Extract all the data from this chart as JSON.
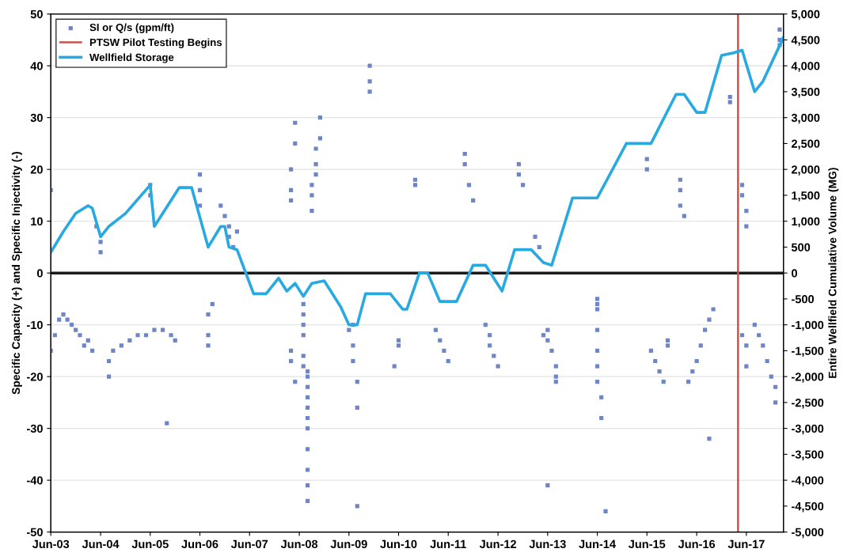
{
  "chart_data": {
    "type": "scatter",
    "ylabel": "Specific Capacity (+) and Specific Injectivity (-)",
    "y2label": "Entire Wellfield Cumulative Volume (MG)",
    "xlim": [
      "2003-06",
      "2018-03"
    ],
    "xticks": [
      {
        "value": "2003-06",
        "label": "Jun-03"
      },
      {
        "value": "2004-06",
        "label": "Jun-04"
      },
      {
        "value": "2005-06",
        "label": "Jun-05"
      },
      {
        "value": "2006-06",
        "label": "Jun-06"
      },
      {
        "value": "2007-06",
        "label": "Jun-07"
      },
      {
        "value": "2008-06",
        "label": "Jun-08"
      },
      {
        "value": "2009-06",
        "label": "Jun-09"
      },
      {
        "value": "2010-06",
        "label": "Jun-10"
      },
      {
        "value": "2011-06",
        "label": "Jun-11"
      },
      {
        "value": "2012-06",
        "label": "Jun-12"
      },
      {
        "value": "2013-06",
        "label": "Jun-13"
      },
      {
        "value": "2014-06",
        "label": "Jun-14"
      },
      {
        "value": "2015-06",
        "label": "Jun-15"
      },
      {
        "value": "2016-06",
        "label": "Jun-16"
      },
      {
        "value": "2017-06",
        "label": "Jun-17"
      }
    ],
    "ylim": [
      -50,
      50
    ],
    "yticks": [
      -50,
      -40,
      -30,
      -20,
      -10,
      0,
      10,
      20,
      30,
      40,
      50
    ],
    "y2lim": [
      -5000,
      5000
    ],
    "y2ticks": [
      {
        "value": -5000,
        "label": "-5,000"
      },
      {
        "value": -4500,
        "label": "-4,500"
      },
      {
        "value": -4000,
        "label": "-4,000"
      },
      {
        "value": -3500,
        "label": "-3,500"
      },
      {
        "value": -3000,
        "label": "-3,000"
      },
      {
        "value": -2500,
        "label": "-2,500"
      },
      {
        "value": -2000,
        "label": "-2,000"
      },
      {
        "value": -1500,
        "label": "-1,500"
      },
      {
        "value": -1000,
        "label": "-1,000"
      },
      {
        "value": -500,
        "label": "-500"
      },
      0,
      500,
      {
        "value": 1000,
        "label": "1,000"
      },
      {
        "value": 1500,
        "label": "1,500"
      },
      {
        "value": 2000,
        "label": "2,000"
      },
      {
        "value": 2500,
        "label": "2,500"
      },
      {
        "value": 3000,
        "label": "3,000"
      },
      {
        "value": 3500,
        "label": "3,500"
      },
      {
        "value": 4000,
        "label": "4,000"
      },
      {
        "value": 4500,
        "label": "4,500"
      },
      {
        "value": 5000,
        "label": "5,000"
      }
    ],
    "grid": "y",
    "legend": "top left",
    "series": [
      {
        "name": "SI or Q/s (gpm/ft)",
        "color": "#6f86c6",
        "marker": "square",
        "x": [
          "2003-06",
          "2003-06",
          "2003-07",
          "2003-08",
          "2003-09",
          "2003-10",
          "2003-11",
          "2003-12",
          "2004-01",
          "2004-02",
          "2004-03",
          "2004-04",
          "2004-05",
          "2004-06",
          "2004-06",
          "2004-08",
          "2004-08",
          "2004-09",
          "2004-11",
          "2005-01",
          "2005-03",
          "2005-05",
          "2005-06",
          "2005-06",
          "2005-07",
          "2005-09",
          "2005-10",
          "2005-11",
          "2005-12",
          "2006-06",
          "2006-06",
          "2006-06",
          "2006-08",
          "2006-08",
          "2006-08",
          "2006-09",
          "2006-11",
          "2006-12",
          "2007-01",
          "2007-01",
          "2007-02",
          "2007-03",
          "2008-04",
          "2008-04",
          "2008-05",
          "2008-05",
          "2008-05",
          "2008-04",
          "2008-04",
          "2008-04",
          "2008-07",
          "2008-07",
          "2008-07",
          "2008-07",
          "2008-07",
          "2008-07",
          "2008-08",
          "2008-08",
          "2008-08",
          "2008-08",
          "2008-08",
          "2008-08",
          "2008-08",
          "2008-08",
          "2008-08",
          "2008-08",
          "2008-08",
          "2008-09",
          "2008-09",
          "2008-09",
          "2008-10",
          "2008-10",
          "2008-10",
          "2008-11",
          "2008-11",
          "2009-06",
          "2009-07",
          "2009-07",
          "2009-08",
          "2009-08",
          "2009-08",
          "2009-07",
          "2009-11",
          "2009-11",
          "2009-11",
          "2010-06",
          "2010-06",
          "2010-05",
          "2010-10",
          "2010-10",
          "2011-03",
          "2011-04",
          "2011-05",
          "2011-06",
          "2011-10",
          "2011-10",
          "2011-11",
          "2011-12",
          "2012-03",
          "2012-04",
          "2012-04",
          "2012-05",
          "2012-06",
          "2012-11",
          "2012-11",
          "2012-12",
          "2013-03",
          "2013-04",
          "2013-05",
          "2013-06",
          "2013-07",
          "2013-08",
          "2013-08",
          "2013-08",
          "2013-06",
          "2013-06",
          "2014-06",
          "2014-06",
          "2014-06",
          "2014-06",
          "2014-06",
          "2014-06",
          "2014-06",
          "2014-07",
          "2014-07",
          "2014-08",
          "2015-06",
          "2015-06",
          "2015-07",
          "2015-08",
          "2015-09",
          "2015-10",
          "2015-11",
          "2015-11",
          "2016-02",
          "2016-02",
          "2016-02",
          "2016-03",
          "2016-04",
          "2016-05",
          "2016-06",
          "2016-07",
          "2016-08",
          "2016-09",
          "2016-10",
          "2016-09",
          "2017-02",
          "2017-02",
          "2017-05",
          "2017-05",
          "2017-06",
          "2017-06",
          "2017-05",
          "2017-06",
          "2017-06",
          "2017-08",
          "2017-09",
          "2017-10",
          "2017-11",
          "2017-12",
          "2018-01",
          "2018-01",
          "2018-02",
          "2018-02",
          "2018-02"
        ],
        "values": [
          -15,
          16,
          -12,
          -9,
          -8,
          -9,
          -10,
          -11,
          -12,
          -14,
          -13,
          -15,
          9,
          6,
          4,
          -17,
          -20,
          -15,
          -14,
          -13,
          -12,
          -12,
          15,
          17,
          -11,
          -11,
          -29,
          -12,
          -13,
          19,
          16,
          13,
          -8,
          -12,
          -14,
          -6,
          13,
          11,
          9,
          7,
          5,
          8,
          -15,
          -17,
          -21,
          29,
          25,
          20,
          16,
          14,
          -6,
          -8,
          -10,
          -12,
          -16,
          -18,
          -20,
          -24,
          -26,
          -28,
          -30,
          -34,
          -38,
          -41,
          -44,
          -22,
          -19,
          12,
          15,
          17,
          19,
          21,
          24,
          26,
          30,
          -11,
          -14,
          -17,
          -21,
          -26,
          -45,
          -10,
          40,
          37,
          35,
          -13,
          -14,
          -18,
          17,
          18,
          -11,
          -13,
          -15,
          -17,
          23,
          21,
          17,
          14,
          -10,
          -12,
          -14,
          -16,
          -18,
          21,
          19,
          17,
          7,
          5,
          -12,
          -13,
          -15,
          -18,
          -20,
          -21,
          -41,
          -11,
          -5,
          -6,
          -7,
          -11,
          -15,
          -18,
          -21,
          -24,
          -28,
          -46,
          22,
          20,
          -15,
          -17,
          -19,
          -21,
          -14,
          -13,
          18,
          16,
          13,
          11,
          -21,
          -19,
          -17,
          -14,
          -11,
          -9,
          -7,
          -32,
          33,
          34,
          17,
          15,
          12,
          9,
          -12,
          -14,
          -18,
          -10,
          -12,
          -14,
          -17,
          -20,
          -22,
          -25,
          47,
          45,
          44
        ]
      },
      {
        "type": "line",
        "name": "PTSW Pilot Testing Begins",
        "color": "#c8524e",
        "marker": "none",
        "line_style": "solid",
        "x": [
          "2017-04",
          "2017-04"
        ],
        "values": [
          -50,
          50
        ]
      },
      {
        "type": "line",
        "name": "Wellfield Storage",
        "color": "#29a9e1",
        "axis": "y2",
        "marker": "none",
        "line_style": "solid",
        "x": [
          "2003-06",
          "2003-09",
          "2003-12",
          "2004-03",
          "2004-04",
          "2004-06",
          "2004-08",
          "2004-12",
          "2005-06",
          "2005-07",
          "2006-01",
          "2006-04",
          "2006-08",
          "2006-11",
          "2006-12",
          "2007-01",
          "2007-03",
          "2007-07",
          "2007-10",
          "2008-01",
          "2008-03",
          "2008-05",
          "2008-07",
          "2008-09",
          "2008-12",
          "2009-04",
          "2009-06",
          "2009-08",
          "2009-10",
          "2010-04",
          "2010-07",
          "2010-08",
          "2010-11",
          "2011-01",
          "2011-04",
          "2011-08",
          "2011-12",
          "2012-03",
          "2012-07",
          "2012-10",
          "2013-02",
          "2013-05",
          "2013-07",
          "2013-12",
          "2014-06",
          "2015-01",
          "2015-07",
          "2016-01",
          "2016-03",
          "2016-06",
          "2016-08",
          "2016-12",
          "2017-03",
          "2017-05",
          "2017-08",
          "2017-10",
          "2018-03"
        ],
        "values": [
          400,
          800,
          1150,
          1300,
          1250,
          700,
          900,
          1150,
          1700,
          900,
          1650,
          1650,
          500,
          900,
          900,
          500,
          450,
          -400,
          -400,
          -100,
          -350,
          -200,
          -450,
          -200,
          -150,
          -650,
          -1000,
          -1000,
          -400,
          -400,
          -700,
          -700,
          0,
          0,
          -550,
          -550,
          150,
          150,
          -350,
          450,
          450,
          200,
          150,
          1450,
          1450,
          2500,
          2500,
          3450,
          3450,
          3100,
          3100,
          4200,
          4250,
          4300,
          3500,
          3700,
          4550
        ]
      }
    ],
    "ref_lines": [
      {
        "axis": "y",
        "value": 0,
        "color": "#1a1a1a"
      }
    ]
  }
}
